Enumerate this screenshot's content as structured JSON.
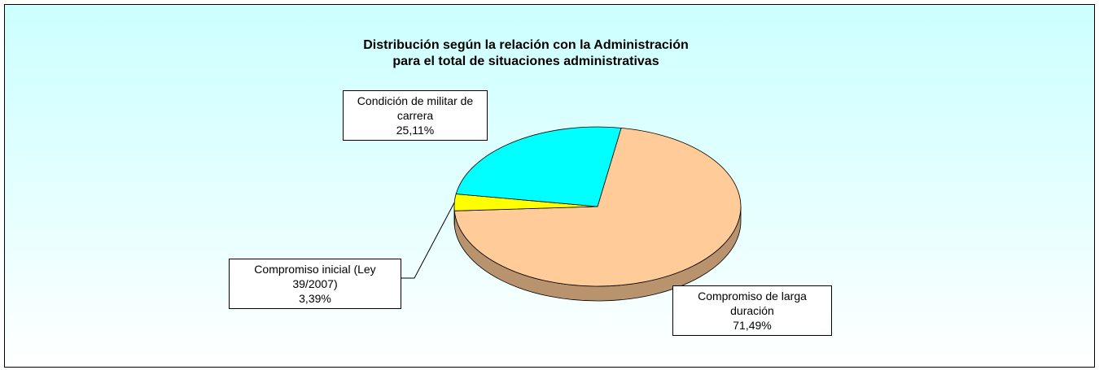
{
  "chart_data": {
    "type": "pie",
    "title": "Distribución según la relación con la Administración\npara el total de situaciones administrativas",
    "categories": [
      "Compromiso de larga duración",
      "Compromiso inicial (Ley 39/2007)",
      "Condición de militar de carrera"
    ],
    "values": [
      71.49,
      3.39,
      25.11
    ],
    "value_labels": [
      "71,49%",
      "3,39%",
      "25,11%"
    ],
    "colors": [
      "#ffcc99",
      "#ffff00",
      "#00ffff"
    ]
  }
}
